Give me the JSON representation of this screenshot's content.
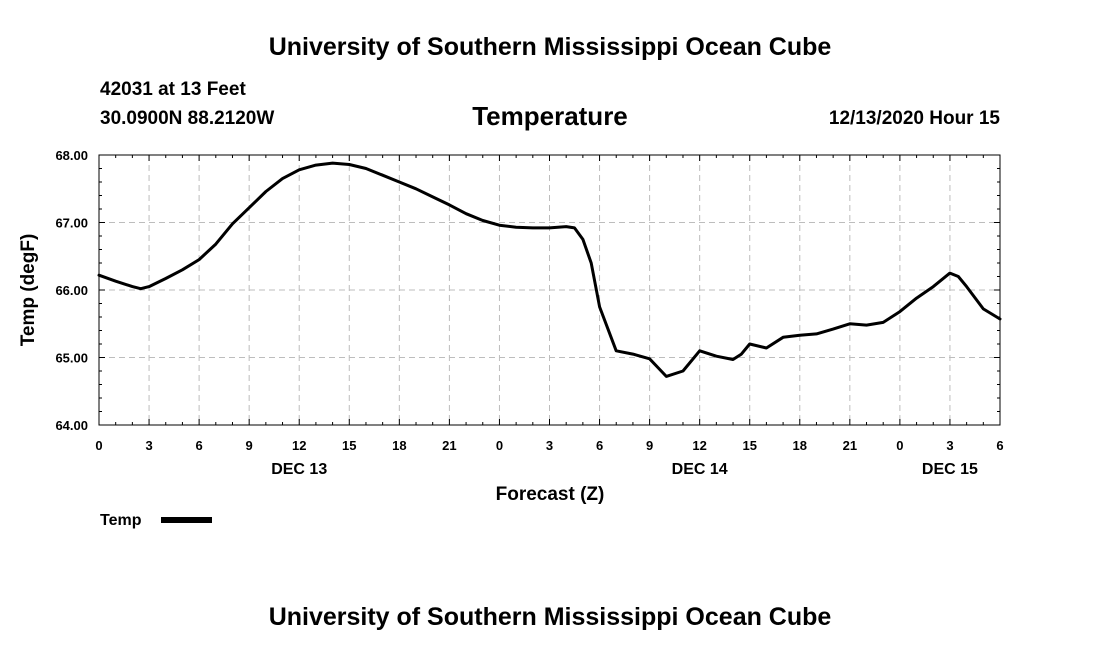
{
  "header": {
    "title": "University of Southern Mississippi Ocean Cube",
    "station": "42031 at 13 Feet",
    "location": "30.0900N 88.2120W",
    "datetime": "12/13/2020 Hour 15"
  },
  "footer": {
    "title": "University of Southern Mississippi Ocean Cube"
  },
  "chart_data": {
    "type": "line",
    "title": "Temperature",
    "xlabel": "Forecast (Z)",
    "ylabel": "Temp (degF)",
    "xlim": [
      0,
      54
    ],
    "ylim": [
      64.0,
      68.0
    ],
    "grid": true,
    "x_ticks": [
      0,
      3,
      6,
      9,
      12,
      15,
      18,
      21,
      24,
      27,
      30,
      33,
      36,
      39,
      42,
      45,
      48,
      51,
      54
    ],
    "x_tick_labels": [
      "0",
      "3",
      "6",
      "9",
      "12",
      "15",
      "18",
      "21",
      "0",
      "3",
      "6",
      "9",
      "12",
      "15",
      "18",
      "21",
      "0",
      "3",
      "6"
    ],
    "y_ticks": [
      64.0,
      65.0,
      66.0,
      67.0,
      68.0
    ],
    "y_tick_labels": [
      "64.00",
      "65.00",
      "66.00",
      "67.00",
      "68.00"
    ],
    "day_labels": [
      {
        "x": 12,
        "label": "DEC 13"
      },
      {
        "x": 36,
        "label": "DEC 14"
      },
      {
        "x": 51,
        "label": "DEC 15"
      }
    ],
    "series": [
      {
        "name": "Temp",
        "color": "#000000",
        "x": [
          0,
          1,
          2,
          2.5,
          3,
          4,
          5,
          6,
          7,
          8,
          9,
          10,
          11,
          12,
          13,
          14,
          15,
          16,
          17,
          18,
          19,
          20,
          21,
          22,
          23,
          24,
          25,
          26,
          27,
          28,
          28.5,
          29,
          29.5,
          30,
          31,
          32,
          33,
          33.5,
          34,
          35,
          36,
          37,
          38,
          38.5,
          39,
          40,
          41,
          42,
          43,
          44,
          45,
          46,
          47,
          48,
          49,
          50,
          51,
          51.5,
          52,
          53,
          54
        ],
        "y": [
          66.22,
          66.13,
          66.05,
          66.02,
          66.05,
          66.17,
          66.3,
          66.45,
          66.68,
          66.98,
          67.22,
          67.46,
          67.65,
          67.78,
          67.85,
          67.88,
          67.86,
          67.8,
          67.7,
          67.6,
          67.5,
          67.38,
          67.26,
          67.13,
          67.03,
          66.96,
          66.93,
          66.92,
          66.92,
          66.94,
          66.92,
          66.75,
          66.4,
          65.75,
          65.1,
          65.05,
          64.98,
          64.85,
          64.72,
          64.8,
          65.1,
          65.02,
          64.97,
          65.05,
          65.2,
          65.14,
          65.3,
          65.33,
          65.35,
          65.42,
          65.5,
          65.48,
          65.52,
          65.68,
          65.88,
          66.05,
          66.25,
          66.2,
          66.05,
          65.72,
          65.57
        ]
      }
    ],
    "legend": {
      "position": "bottom-left",
      "entries": [
        "Temp"
      ]
    }
  }
}
